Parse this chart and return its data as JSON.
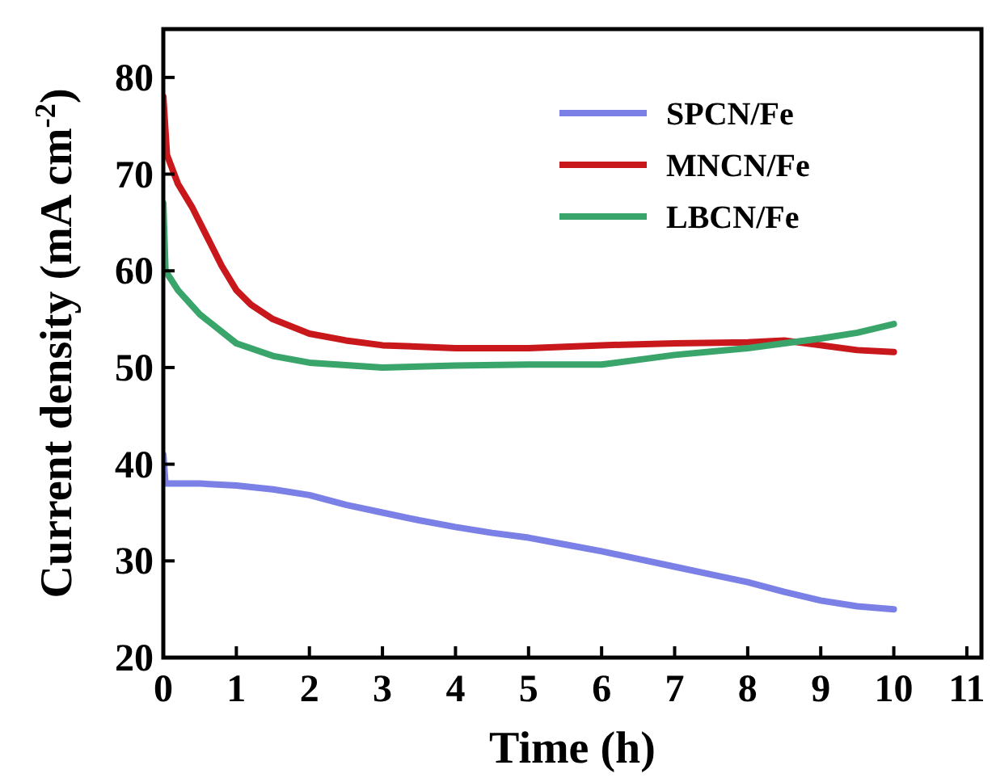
{
  "chart_data": {
    "type": "line",
    "xlabel": "Time (h)",
    "ylabel": "Current density (mA cm$^{-2}$)",
    "xlim": [
      0,
      11.2
    ],
    "xticks": [
      0,
      1,
      2,
      3,
      4,
      5,
      6,
      7,
      8,
      9,
      10,
      11
    ],
    "ylim": [
      20,
      85
    ],
    "yticks": [
      20,
      30,
      40,
      50,
      60,
      70,
      80
    ],
    "grid": false,
    "legend": "top right",
    "marker": "none",
    "line_style": "solid",
    "series": [
      {
        "name": "SPCN/Fe",
        "color": "#7b80e6",
        "x": [
          0,
          0.03,
          0.5,
          1,
          1.5,
          2,
          2.5,
          3,
          3.5,
          4,
          4.5,
          5,
          5.5,
          6,
          6.5,
          7,
          7.5,
          8,
          8.5,
          9,
          9.5,
          10
        ],
        "values": [
          41,
          38,
          38,
          37.8,
          37.4,
          36.8,
          35.8,
          35,
          34.2,
          33.5,
          32.9,
          32.4,
          31.7,
          31,
          30.2,
          29.4,
          28.6,
          27.8,
          26.8,
          25.9,
          25.3,
          25
        ]
      },
      {
        "name": "MNCN/Fe",
        "color": "#c8181c",
        "x": [
          0,
          0.05,
          0.2,
          0.4,
          0.6,
          0.8,
          1,
          1.2,
          1.5,
          2,
          2.5,
          3,
          4,
          5,
          6,
          7,
          8,
          8.5,
          9,
          9.5,
          10
        ],
        "values": [
          78,
          72,
          69,
          66.5,
          63.5,
          60.5,
          58,
          56.5,
          55,
          53.5,
          52.8,
          52.3,
          52,
          52,
          52.3,
          52.5,
          52.6,
          52.8,
          52.3,
          51.8,
          51.6
        ]
      },
      {
        "name": "LBCN/Fe",
        "color": "#3aa56a",
        "x": [
          0,
          0.03,
          0.2,
          0.5,
          1,
          1.5,
          2,
          3,
          4,
          5,
          6,
          6.5,
          7,
          8,
          9,
          9.5,
          10
        ],
        "values": [
          67,
          60,
          58,
          55.5,
          52.5,
          51.2,
          50.5,
          50,
          50.2,
          50.3,
          50.3,
          50.8,
          51.3,
          52,
          53,
          53.6,
          54.5
        ]
      }
    ]
  }
}
